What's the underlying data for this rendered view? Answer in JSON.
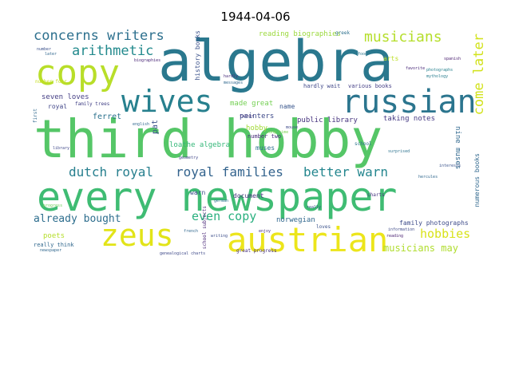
{
  "title": "1944-04-06",
  "words": [
    {
      "text": "third hobby",
      "color": "#55c667"
    },
    {
      "text": "every newspaper",
      "color": "#3fbc73"
    },
    {
      "text": "algebra",
      "color": "#2a788e"
    },
    {
      "text": "austrian",
      "color": "#ece51b"
    },
    {
      "text": "zeus",
      "color": "#e2e418"
    },
    {
      "text": "copy",
      "color": "#b8de29"
    },
    {
      "text": "wives",
      "color": "#27808e"
    },
    {
      "text": "russian",
      "color": "#2b758e"
    },
    {
      "text": "concerns writers",
      "color": "#2d708e"
    },
    {
      "text": "arithmetic",
      "color": "#238a8d"
    },
    {
      "text": "musicians",
      "color": "#b5de2b"
    },
    {
      "text": "come later",
      "color": "#d2e21b"
    },
    {
      "text": "dutch royal",
      "color": "#277f8e"
    },
    {
      "text": "royal families",
      "color": "#33638d"
    },
    {
      "text": "better warn",
      "color": "#24868e"
    },
    {
      "text": "even copy",
      "color": "#2ab07f"
    },
    {
      "text": "already bought",
      "color": "#2e6e8e"
    },
    {
      "text": "hobbies",
      "color": "#d8e219"
    },
    {
      "text": "musicians may",
      "color": "#b0dd2f"
    },
    {
      "text": "reading biographies",
      "color": "#9bd93c"
    },
    {
      "text": "history books",
      "color": "#3b528b"
    },
    {
      "text": "loathe algebra",
      "color": "#35b779"
    },
    {
      "text": "painters",
      "color": "#3e4a89"
    },
    {
      "text": "public library",
      "color": "#46337e"
    },
    {
      "text": "taking notes",
      "color": "#443983"
    },
    {
      "text": "nine muses",
      "color": "#31688e"
    },
    {
      "text": "seven loves",
      "color": "#433d84"
    },
    {
      "text": "ferret",
      "color": "#2c728e"
    },
    {
      "text": "pat",
      "color": "#3b528b"
    },
    {
      "text": "made great",
      "color": "#75d054"
    },
    {
      "text": "hardly wait",
      "color": "#3f4788"
    },
    {
      "text": "various books",
      "color": "#433e85"
    },
    {
      "text": "name",
      "color": "#39568c"
    },
    {
      "text": "document",
      "color": "#46327e"
    },
    {
      "text": "hobby",
      "color": "#a2da37"
    },
    {
      "text": "norwegian",
      "color": "#31688e"
    },
    {
      "text": "muses",
      "color": "#2c718e"
    },
    {
      "text": "family photographs",
      "color": "#3e4c8a"
    },
    {
      "text": "numerous books",
      "color": "#31688e"
    },
    {
      "text": "poets",
      "color": "#b5de2b"
    },
    {
      "text": "really think",
      "color": "#31688e"
    },
    {
      "text": "great progress",
      "color": "#46307e"
    },
    {
      "text": "warn",
      "color": "#3c4f8a"
    },
    {
      "text": "arts",
      "color": "#bddf26"
    },
    {
      "text": "greek",
      "color": "#2d708e"
    },
    {
      "text": "royal",
      "color": "#404588"
    },
    {
      "text": "family trees",
      "color": "#424186"
    },
    {
      "text": "number two",
      "color": "#472c7a"
    },
    {
      "text": "loves",
      "color": "#3b528b"
    },
    {
      "text": "school subjects",
      "color": "#482677"
    },
    {
      "text": "first",
      "color": "#31688e"
    },
    {
      "text": "number four",
      "color": "#c8e020"
    },
    {
      "text": "biographies",
      "color": "#482475"
    },
    {
      "text": "geometry",
      "color": "#404688"
    },
    {
      "text": "english",
      "color": "#31688e"
    },
    {
      "text": "newspaper",
      "color": "#31688e"
    },
    {
      "text": "genealogical charts",
      "color": "#3e4989"
    },
    {
      "text": "library",
      "color": "#3f4889"
    },
    {
      "text": "school",
      "color": "#2d718e"
    },
    {
      "text": "charts",
      "color": "#46337e"
    },
    {
      "text": "reading",
      "color": "#481f70"
    },
    {
      "text": "progress",
      "color": "#6ece58"
    },
    {
      "text": "interests",
      "color": "#3a538b"
    },
    {
      "text": "hercules",
      "color": "#31688e"
    },
    {
      "text": "favorite",
      "color": "#482878"
    },
    {
      "text": "information",
      "color": "#3e4a89"
    },
    {
      "text": "surprised",
      "color": "#2c728e"
    },
    {
      "text": "photographs",
      "color": "#26818e"
    },
    {
      "text": "spanish",
      "color": "#481c6e"
    },
    {
      "text": "mythology",
      "color": "#287d8e"
    },
    {
      "text": "really",
      "color": "#3c508b"
    },
    {
      "text": "french",
      "color": "#31688e"
    },
    {
      "text": "writing",
      "color": "#3d4e8a"
    },
    {
      "text": "german",
      "color": "#2b748e"
    },
    {
      "text": "father",
      "color": "#453781"
    },
    {
      "text": "number",
      "color": "#3b518b"
    },
    {
      "text": "later",
      "color": "#31688e"
    },
    {
      "text": "hardly",
      "color": "#472d7b"
    },
    {
      "text": "food",
      "color": "#2a768e"
    },
    {
      "text": "mouse",
      "color": "#3e4989"
    },
    {
      "text": "messages",
      "color": "#31688e"
    },
    {
      "text": "enjoy",
      "color": "#46307e"
    },
    {
      "text": "long time",
      "color": "#7ad151"
    }
  ]
}
